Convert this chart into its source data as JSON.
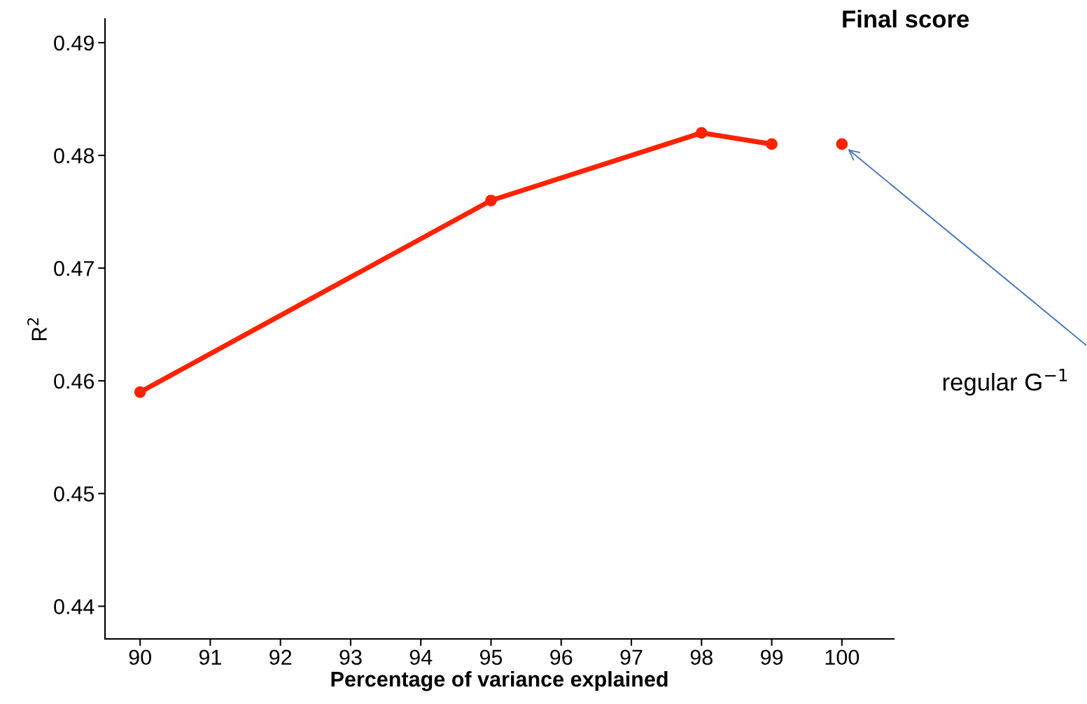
{
  "chart_data": {
    "type": "line",
    "title": "Final score",
    "xlabel": "Percentage of variance explained",
    "ylabel": "R$^{2}$",
    "series": [
      {
        "color": "#ff2200",
        "x": [
          90,
          95,
          98,
          99
        ],
        "values": [
          0.459,
          0.476,
          0.482,
          0.481
        ]
      },
      {
        "type": "scatter",
        "color": "#ff2200",
        "x": [
          100
        ],
        "values": [
          0.481
        ]
      }
    ],
    "xlim": [
      89.5,
      100.74
    ],
    "xticks": [
      90,
      91,
      92,
      93,
      94,
      95,
      96,
      97,
      98,
      99,
      100
    ],
    "ylim": [
      0.4371,
      0.4921
    ],
    "yticks": [
      0.44,
      0.45,
      0.46,
      0.47,
      0.48,
      0.49
    ],
    "annotations": [
      "regular G$^{−1}$"
    ],
    "marker": "circle",
    "grid": false,
    "legend": false
  }
}
